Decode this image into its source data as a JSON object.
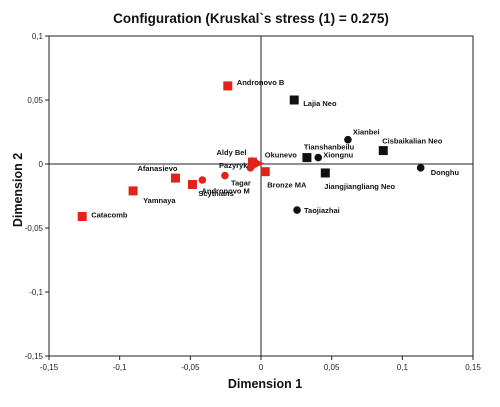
{
  "chart_data": {
    "type": "scatter",
    "title": "Configuration (Kruskal`s stress (1) = 0.275)",
    "xlabel": "Dimension 1",
    "ylabel": "Dimension 2",
    "xlim": [
      -0.15,
      0.15
    ],
    "ylim": [
      -0.15,
      0.1
    ],
    "x_ticks": [
      "-0,15",
      "-0,1",
      "-0,05",
      "0",
      "0,05",
      "0,1",
      "0,15"
    ],
    "y_ticks": [
      "0,1",
      "0,05",
      "0",
      "-0,05",
      "-0,1",
      "-0,15"
    ],
    "grid": false,
    "zero_lines": true,
    "colors": {
      "red": "#e2231a",
      "black": "#111111"
    },
    "points": [
      {
        "label": "Andronovo B",
        "x": -0.0235,
        "y": 0.061,
        "shape": "square",
        "color": "red"
      },
      {
        "label": "Lajia Neo",
        "x": 0.0235,
        "y": 0.05,
        "shape": "square",
        "color": "black"
      },
      {
        "label": "Xianbei",
        "x": 0.0615,
        "y": 0.019,
        "shape": "circle",
        "color": "black"
      },
      {
        "label": "Cisbaikalian Neo",
        "x": 0.0865,
        "y": 0.0105,
        "shape": "square",
        "color": "black"
      },
      {
        "label": "Tianshanbeilu",
        "x": 0.0325,
        "y": 0.005,
        "shape": "square",
        "color": "black"
      },
      {
        "label": "Xiongnu",
        "x": 0.0405,
        "y": 0.005,
        "shape": "circle",
        "color": "black"
      },
      {
        "label": "Donghu",
        "x": 0.113,
        "y": -0.003,
        "shape": "circle",
        "color": "black"
      },
      {
        "label": "Jiangjiangliang Neo",
        "x": 0.0455,
        "y": -0.007,
        "shape": "square",
        "color": "black"
      },
      {
        "label": "Taojiazhai",
        "x": 0.0255,
        "y": -0.036,
        "shape": "circle",
        "color": "black"
      },
      {
        "label": "Aldy Bel",
        "x": -0.006,
        "y": 0.0015,
        "shape": "square",
        "color": "red"
      },
      {
        "label": "Okunevo",
        "x": -0.003,
        "y": 0.0005,
        "shape": "triangle",
        "color": "red"
      },
      {
        "label": "Pazyryk",
        "x": -0.0075,
        "y": -0.003,
        "shape": "circle",
        "color": "red"
      },
      {
        "label": "Bronze MA",
        "x": 0.003,
        "y": -0.006,
        "shape": "square",
        "color": "red"
      },
      {
        "label": "Tagar",
        "x": -0.0255,
        "y": -0.009,
        "shape": "circle",
        "color": "red"
      },
      {
        "label": "Scythians",
        "x": -0.0415,
        "y": -0.0125,
        "shape": "circle",
        "color": "red"
      },
      {
        "label": "Andronovo M",
        "x": -0.0485,
        "y": -0.016,
        "shape": "square",
        "color": "red"
      },
      {
        "label": "Afanasievo",
        "x": -0.0605,
        "y": -0.011,
        "shape": "square",
        "color": "red"
      },
      {
        "label": "Yamnaya",
        "x": -0.0905,
        "y": -0.021,
        "shape": "square",
        "color": "red"
      },
      {
        "label": "Catacomb",
        "x": -0.1265,
        "y": -0.041,
        "shape": "square",
        "color": "red"
      }
    ]
  }
}
